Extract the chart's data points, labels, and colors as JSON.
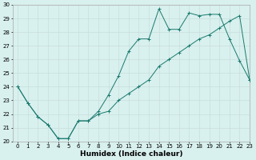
{
  "xlabel": "Humidex (Indice chaleur)",
  "ylabel": "",
  "x_values": [
    0,
    1,
    2,
    3,
    4,
    5,
    6,
    7,
    8,
    9,
    10,
    11,
    12,
    13,
    14,
    15,
    16,
    17,
    18,
    19,
    20,
    21,
    22,
    23
  ],
  "line1_upper": [
    24.0,
    22.8,
    21.8,
    21.2,
    20.2,
    20.2,
    21.5,
    21.5,
    22.2,
    23.4,
    24.8,
    26.6,
    27.5,
    27.5,
    29.7,
    28.2,
    28.2,
    29.4,
    29.2,
    29.3,
    29.3,
    27.5,
    25.9,
    24.5
  ],
  "line2_lower": [
    24.0,
    22.8,
    21.8,
    21.2,
    20.2,
    20.2,
    21.5,
    21.5,
    22.0,
    22.2,
    23.0,
    23.5,
    24.0,
    24.5,
    25.5,
    26.0,
    26.5,
    27.0,
    27.5,
    27.8,
    28.3,
    28.8,
    29.2,
    24.5
  ],
  "line_color": "#1a7a6e",
  "background_color": "#d8f0ee",
  "grid_color": "#c8dede",
  "ylim": [
    20,
    30
  ],
  "xlim": [
    -0.5,
    23
  ],
  "yticks": [
    20,
    21,
    22,
    23,
    24,
    25,
    26,
    27,
    28,
    29,
    30
  ],
  "xticks": [
    0,
    1,
    2,
    3,
    4,
    5,
    6,
    7,
    8,
    9,
    10,
    11,
    12,
    13,
    14,
    15,
    16,
    17,
    18,
    19,
    20,
    21,
    22,
    23
  ],
  "tick_fontsize": 5.0,
  "label_fontsize": 6.5
}
